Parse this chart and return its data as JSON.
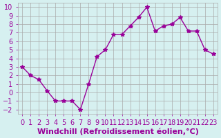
{
  "x": [
    0,
    1,
    2,
    3,
    4,
    5,
    6,
    7,
    8,
    9,
    10,
    11,
    12,
    13,
    14,
    15,
    16,
    17,
    18,
    19,
    20,
    21,
    22,
    23
  ],
  "y": [
    3,
    2,
    1.5,
    0.2,
    -1,
    -1,
    -1,
    -2,
    1,
    4.2,
    5,
    6.8,
    6.8,
    7.8,
    8.8,
    10,
    7.2,
    7.8,
    8,
    8.8,
    7.2,
    7.2,
    5,
    4.5
  ],
  "line_color": "#990099",
  "marker": "*",
  "bg_color": "#d6f0f0",
  "grid_color": "#aaaaaa",
  "xlabel": "Windchill (Refroidissement éolien,°C)",
  "xlabel_color": "#990099",
  "ylim": [
    -2.5,
    10.5
  ],
  "xlim": [
    -0.5,
    23.5
  ],
  "yticks": [
    -2,
    -1,
    0,
    1,
    2,
    3,
    4,
    5,
    6,
    7,
    8,
    9,
    10
  ],
  "xticks": [
    0,
    1,
    2,
    3,
    4,
    5,
    6,
    7,
    8,
    9,
    10,
    11,
    12,
    13,
    14,
    15,
    16,
    17,
    18,
    19,
    20,
    21,
    22,
    23
  ],
  "tick_label_color": "#990099",
  "tick_label_size": 7,
  "xlabel_size": 8
}
